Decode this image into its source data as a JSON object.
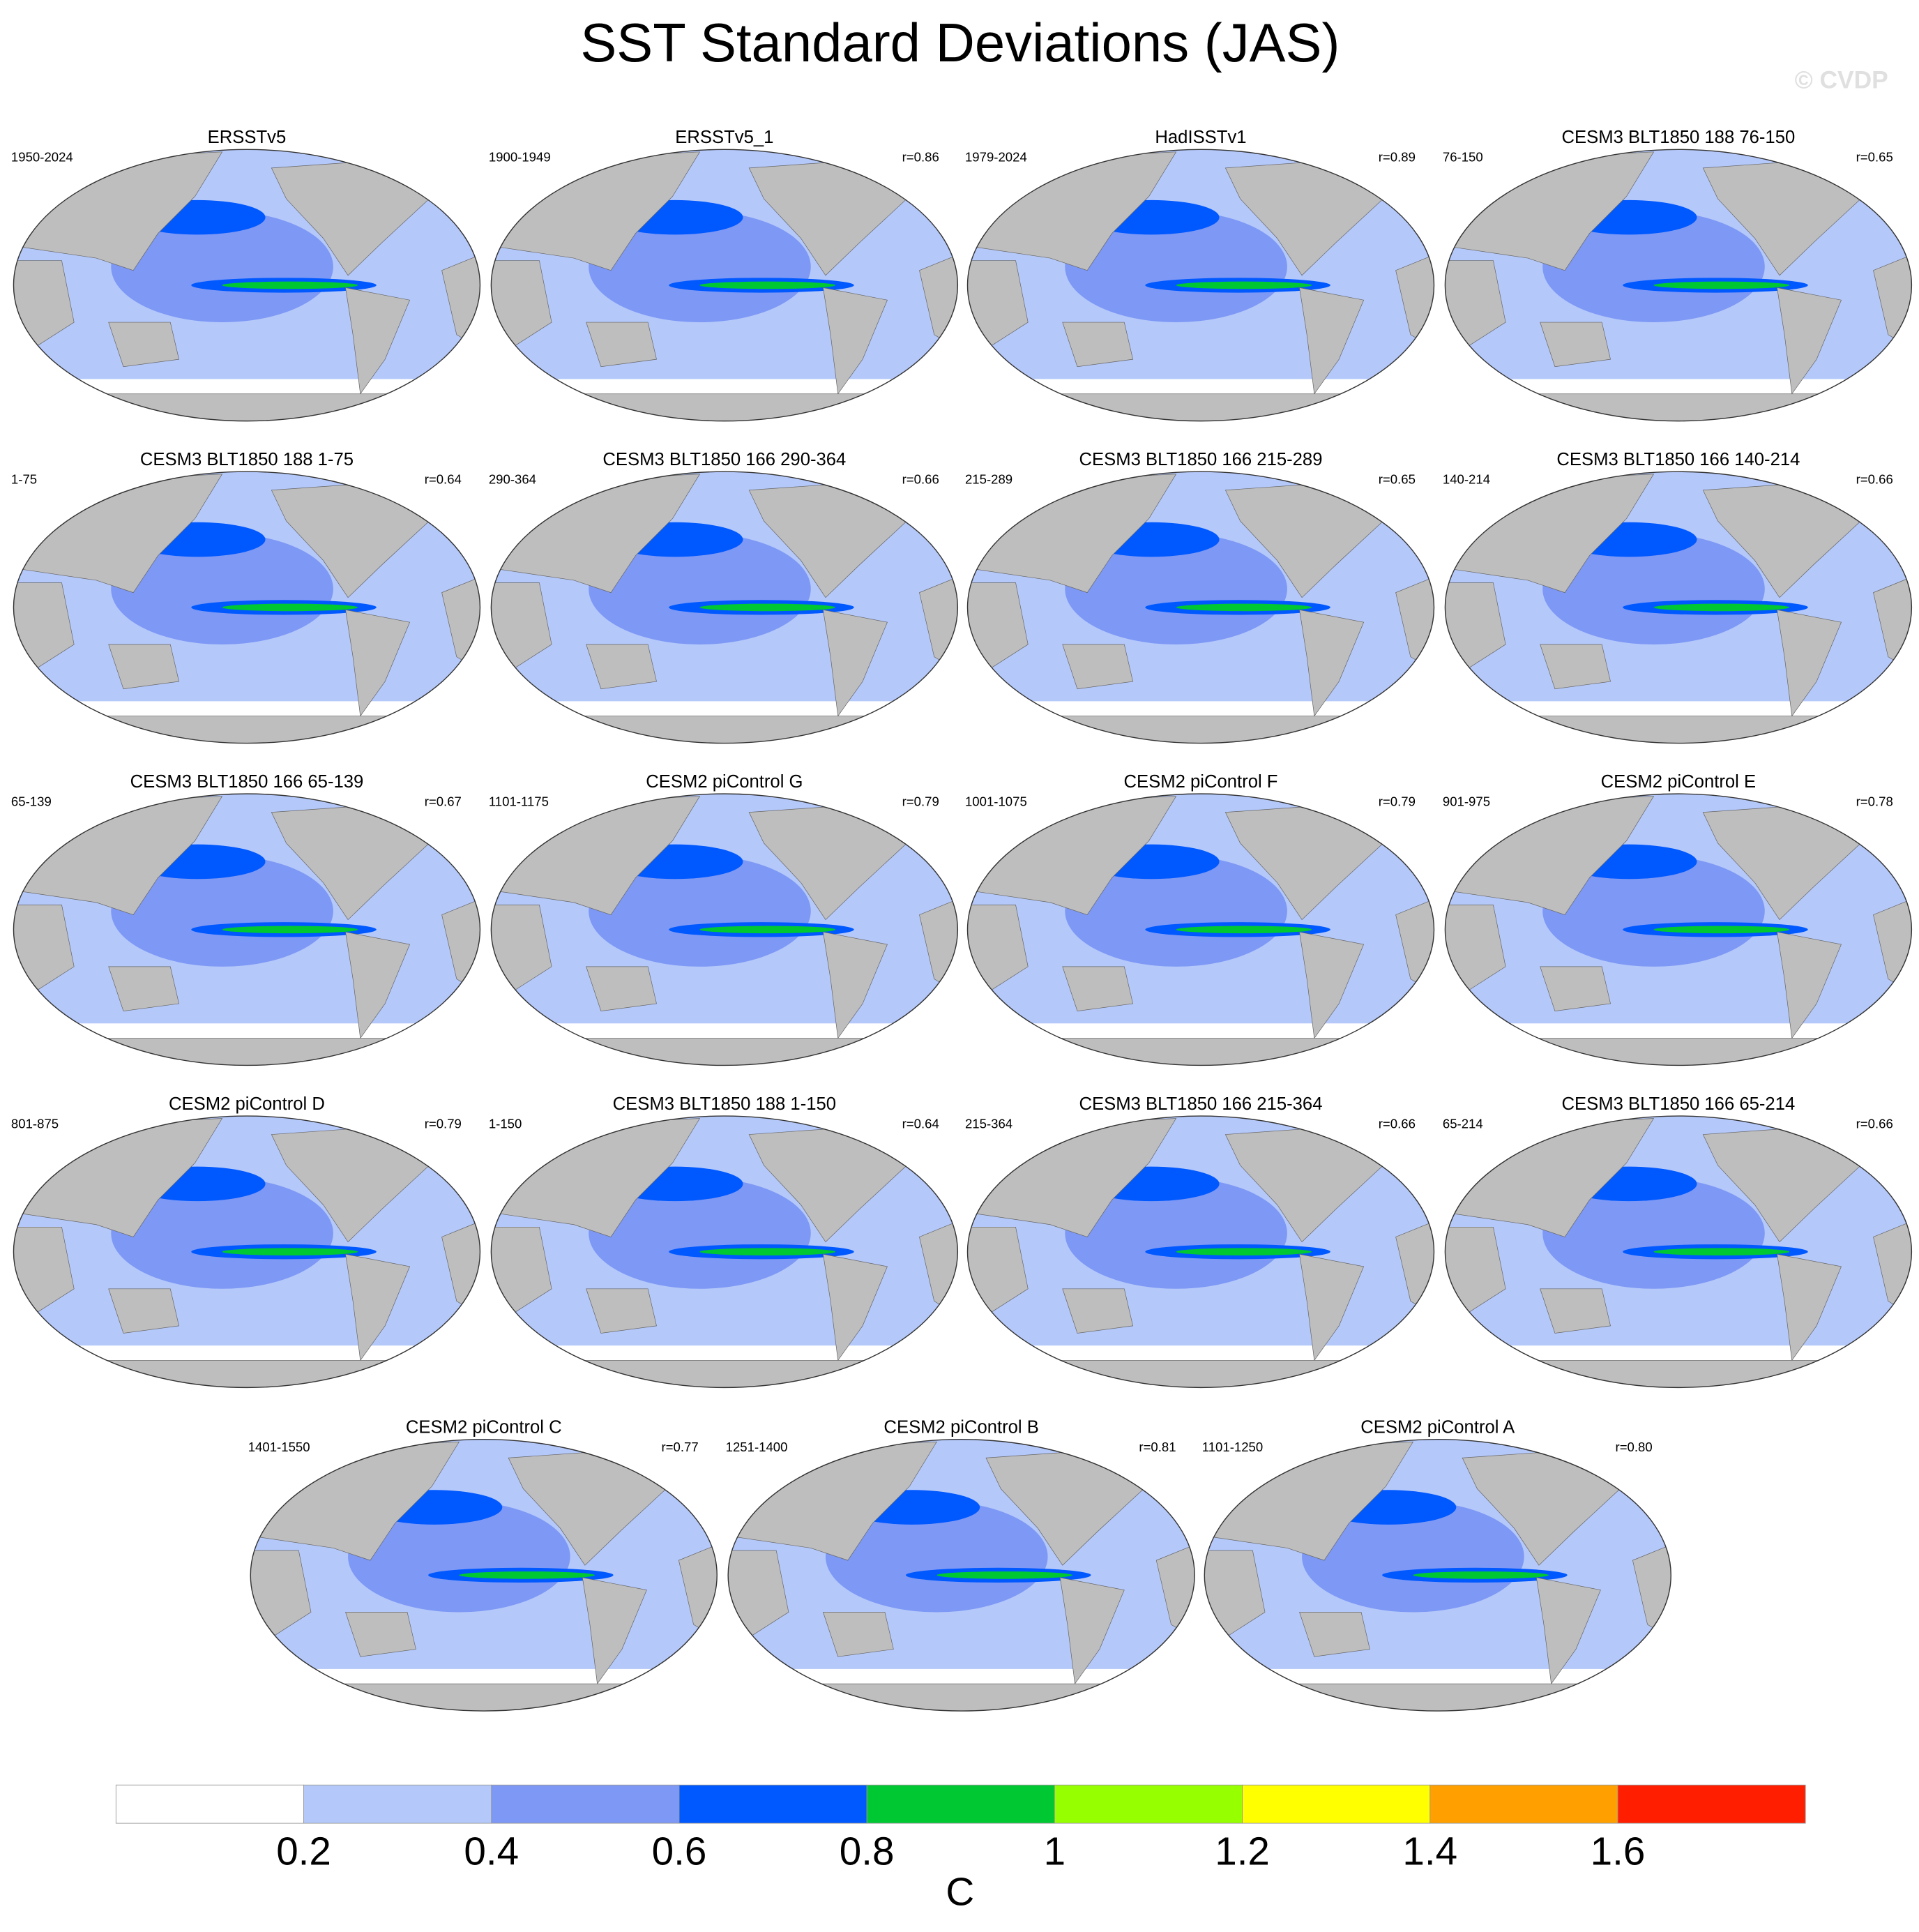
{
  "title": "SST Standard Deviations (JAS)",
  "watermark": "© CVDP",
  "panels": [
    {
      "title": "ERSSTv5",
      "period": "1950-2024"
    },
    {
      "title": "ERSSTv5_1",
      "period": "1900-1949",
      "r": "r=0.86"
    },
    {
      "title": "HadISSTv1",
      "period": "1979-2024",
      "r": "r=0.89"
    },
    {
      "title": "CESM3 BLT1850 188 76-150",
      "period": "76-150",
      "r": "r=0.65"
    },
    {
      "title": "CESM3 BLT1850 188 1-75",
      "period": "1-75",
      "r": "r=0.64"
    },
    {
      "title": "CESM3 BLT1850 166 290-364",
      "period": "290-364",
      "r": "r=0.66"
    },
    {
      "title": "CESM3 BLT1850 166 215-289",
      "period": "215-289",
      "r": "r=0.65"
    },
    {
      "title": "CESM3 BLT1850 166 140-214",
      "period": "140-214",
      "r": "r=0.66"
    },
    {
      "title": "CESM3 BLT1850 166 65-139",
      "period": "65-139",
      "r": "r=0.67"
    },
    {
      "title": "CESM2 piControl G",
      "period": "1101-1175",
      "r": "r=0.79"
    },
    {
      "title": "CESM2 piControl F",
      "period": "1001-1075",
      "r": "r=0.79"
    },
    {
      "title": "CESM2 piControl E",
      "period": "901-975",
      "r": "r=0.78"
    },
    {
      "title": "CESM2 piControl D",
      "period": "801-875",
      "r": "r=0.79"
    },
    {
      "title": "CESM3 BLT1850 188 1-150",
      "period": "1-150",
      "r": "r=0.64"
    },
    {
      "title": "CESM3 BLT1850 166 215-364",
      "period": "215-364",
      "r": "r=0.66"
    },
    {
      "title": "CESM3 BLT1850 166 65-214",
      "period": "65-214",
      "r": "r=0.66"
    },
    {
      "title": "CESM2 piControl C",
      "period": "1401-1550",
      "r": "r=0.77"
    },
    {
      "title": "CESM2 piControl B",
      "period": "1251-1400",
      "r": "r=0.81"
    },
    {
      "title": "CESM2 piControl A",
      "period": "1101-1250",
      "r": "r=0.80"
    }
  ],
  "colorbar": {
    "colors": [
      "#ffffff",
      "#b4c8fa",
      "#7d98f5",
      "#0058ff",
      "#00c832",
      "#96ff00",
      "#ffff00",
      "#ffa000",
      "#ff1e00"
    ],
    "ticks": [
      0.2,
      0.4,
      0.6,
      0.8,
      1,
      1.2,
      1.4,
      1.6
    ],
    "unit": "C"
  }
}
